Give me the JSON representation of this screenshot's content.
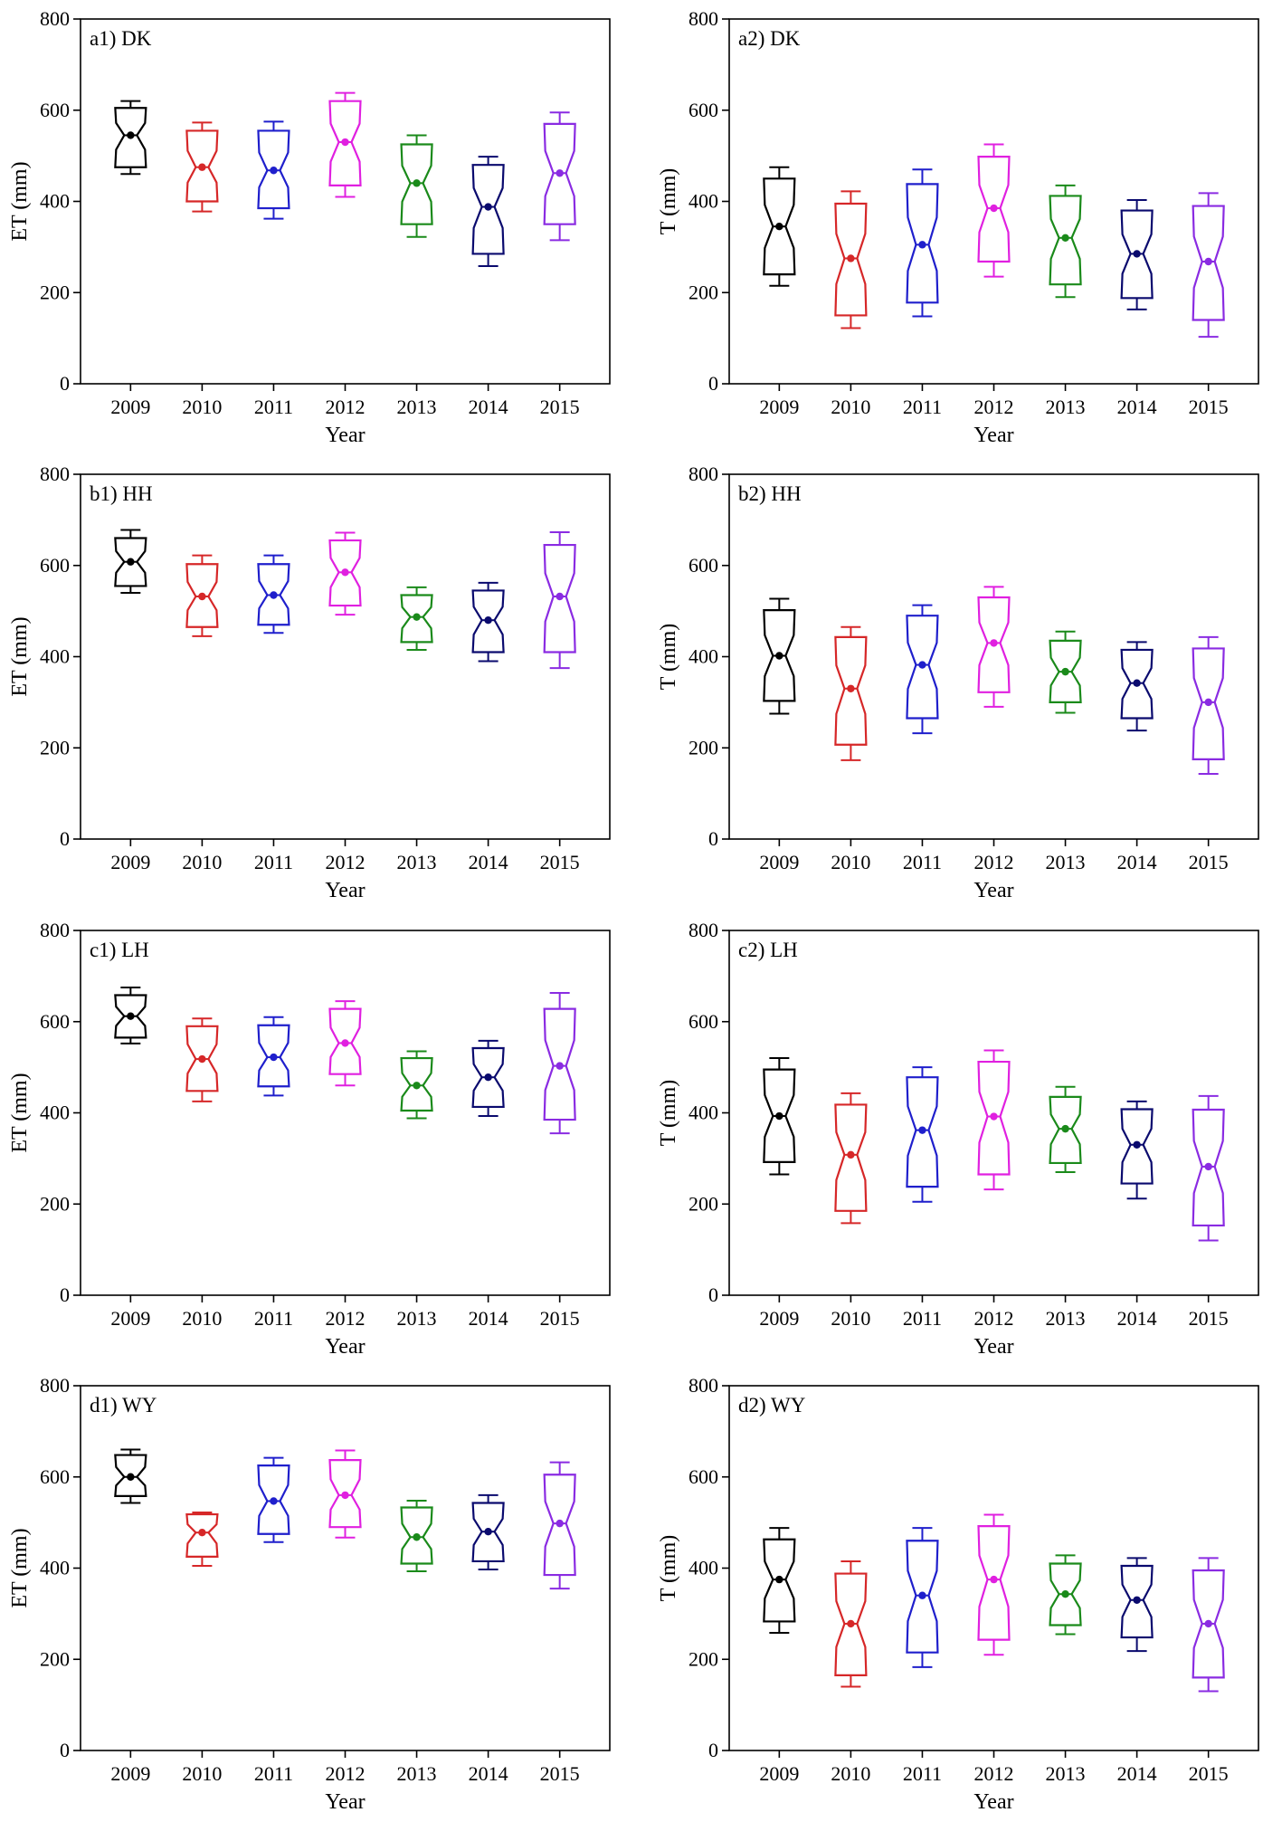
{
  "colors": {
    "2009": "#000000",
    "2010": "#d62728",
    "2011": "#1f1fcc",
    "2012": "#e020e0",
    "2013": "#1a8a1a",
    "2014": "#0a0a6e",
    "2015": "#8a2be2"
  },
  "chart_data": [
    {
      "type": "box",
      "panel": "a1) DK",
      "xlabel": "Year",
      "ylabel": "ET (mm)",
      "ylim": [
        0,
        800
      ],
      "yticks": [
        "0",
        "200",
        "400",
        "600",
        "800"
      ],
      "categories": [
        "2009",
        "2010",
        "2011",
        "2012",
        "2013",
        "2014",
        "2015"
      ],
      "boxes": [
        {
          "min": 460,
          "q1": 475,
          "median": 545,
          "q3": 605,
          "max": 620
        },
        {
          "min": 378,
          "q1": 400,
          "median": 475,
          "q3": 555,
          "max": 573
        },
        {
          "min": 362,
          "q1": 385,
          "median": 468,
          "q3": 555,
          "max": 575
        },
        {
          "min": 410,
          "q1": 435,
          "median": 530,
          "q3": 620,
          "max": 638
        },
        {
          "min": 322,
          "q1": 350,
          "median": 440,
          "q3": 525,
          "max": 545
        },
        {
          "min": 258,
          "q1": 285,
          "median": 388,
          "q3": 480,
          "max": 498
        },
        {
          "min": 315,
          "q1": 350,
          "median": 462,
          "q3": 570,
          "max": 595
        }
      ]
    },
    {
      "type": "box",
      "panel": "a2) DK",
      "xlabel": "Year",
      "ylabel": "T (mm)",
      "ylim": [
        0,
        800
      ],
      "yticks": [
        "0",
        "200",
        "400",
        "600",
        "800"
      ],
      "categories": [
        "2009",
        "2010",
        "2011",
        "2012",
        "2013",
        "2014",
        "2015"
      ],
      "boxes": [
        {
          "min": 215,
          "q1": 240,
          "median": 345,
          "q3": 450,
          "max": 475
        },
        {
          "min": 122,
          "q1": 150,
          "median": 275,
          "q3": 395,
          "max": 422
        },
        {
          "min": 148,
          "q1": 178,
          "median": 305,
          "q3": 438,
          "max": 470
        },
        {
          "min": 235,
          "q1": 268,
          "median": 385,
          "q3": 498,
          "max": 525
        },
        {
          "min": 190,
          "q1": 218,
          "median": 320,
          "q3": 412,
          "max": 435
        },
        {
          "min": 163,
          "q1": 188,
          "median": 285,
          "q3": 380,
          "max": 403
        },
        {
          "min": 103,
          "q1": 140,
          "median": 268,
          "q3": 390,
          "max": 418
        }
      ]
    },
    {
      "type": "box",
      "panel": "b1) HH",
      "xlabel": "Year",
      "ylabel": "ET (mm)",
      "ylim": [
        0,
        800
      ],
      "yticks": [
        "0",
        "200",
        "400",
        "600",
        "800"
      ],
      "categories": [
        "2009",
        "2010",
        "2011",
        "2012",
        "2013",
        "2014",
        "2015"
      ],
      "boxes": [
        {
          "min": 540,
          "q1": 555,
          "median": 608,
          "q3": 660,
          "max": 678
        },
        {
          "min": 445,
          "q1": 465,
          "median": 532,
          "q3": 603,
          "max": 622
        },
        {
          "min": 452,
          "q1": 470,
          "median": 535,
          "q3": 603,
          "max": 622
        },
        {
          "min": 492,
          "q1": 512,
          "median": 585,
          "q3": 655,
          "max": 672
        },
        {
          "min": 415,
          "q1": 432,
          "median": 487,
          "q3": 535,
          "max": 552
        },
        {
          "min": 390,
          "q1": 410,
          "median": 480,
          "q3": 545,
          "max": 562
        },
        {
          "min": 375,
          "q1": 410,
          "median": 532,
          "q3": 645,
          "max": 673
        }
      ]
    },
    {
      "type": "box",
      "panel": "b2) HH",
      "xlabel": "Year",
      "ylabel": "T (mm)",
      "ylim": [
        0,
        800
      ],
      "yticks": [
        "0",
        "200",
        "400",
        "600",
        "800"
      ],
      "categories": [
        "2009",
        "2010",
        "2011",
        "2012",
        "2013",
        "2014",
        "2015"
      ],
      "boxes": [
        {
          "min": 275,
          "q1": 303,
          "median": 402,
          "q3": 502,
          "max": 527
        },
        {
          "min": 173,
          "q1": 207,
          "median": 330,
          "q3": 443,
          "max": 465
        },
        {
          "min": 232,
          "q1": 265,
          "median": 382,
          "q3": 490,
          "max": 513
        },
        {
          "min": 290,
          "q1": 322,
          "median": 430,
          "q3": 530,
          "max": 553
        },
        {
          "min": 277,
          "q1": 300,
          "median": 367,
          "q3": 435,
          "max": 455
        },
        {
          "min": 238,
          "q1": 265,
          "median": 342,
          "q3": 415,
          "max": 432
        },
        {
          "min": 143,
          "q1": 175,
          "median": 300,
          "q3": 418,
          "max": 443
        }
      ]
    },
    {
      "type": "box",
      "panel": "c1) LH",
      "xlabel": "Year",
      "ylabel": "ET (mm)",
      "ylim": [
        0,
        800
      ],
      "yticks": [
        "0",
        "200",
        "400",
        "600",
        "800"
      ],
      "categories": [
        "2009",
        "2010",
        "2011",
        "2012",
        "2013",
        "2014",
        "2015"
      ],
      "boxes": [
        {
          "min": 552,
          "q1": 565,
          "median": 612,
          "q3": 658,
          "max": 675
        },
        {
          "min": 425,
          "q1": 448,
          "median": 518,
          "q3": 590,
          "max": 607
        },
        {
          "min": 438,
          "q1": 458,
          "median": 522,
          "q3": 592,
          "max": 610
        },
        {
          "min": 460,
          "q1": 485,
          "median": 553,
          "q3": 628,
          "max": 645
        },
        {
          "min": 388,
          "q1": 405,
          "median": 460,
          "q3": 520,
          "max": 535
        },
        {
          "min": 393,
          "q1": 413,
          "median": 478,
          "q3": 542,
          "max": 558
        },
        {
          "min": 355,
          "q1": 385,
          "median": 503,
          "q3": 628,
          "max": 663
        }
      ]
    },
    {
      "type": "box",
      "panel": "c2) LH",
      "xlabel": "Year",
      "ylabel": "T (mm)",
      "ylim": [
        0,
        800
      ],
      "yticks": [
        "0",
        "200",
        "400",
        "600",
        "800"
      ],
      "categories": [
        "2009",
        "2010",
        "2011",
        "2012",
        "2013",
        "2014",
        "2015"
      ],
      "boxes": [
        {
          "min": 265,
          "q1": 292,
          "median": 393,
          "q3": 495,
          "max": 520
        },
        {
          "min": 158,
          "q1": 185,
          "median": 308,
          "q3": 418,
          "max": 443
        },
        {
          "min": 205,
          "q1": 238,
          "median": 362,
          "q3": 478,
          "max": 500
        },
        {
          "min": 232,
          "q1": 265,
          "median": 392,
          "q3": 512,
          "max": 537
        },
        {
          "min": 270,
          "q1": 290,
          "median": 365,
          "q3": 435,
          "max": 457
        },
        {
          "min": 212,
          "q1": 245,
          "median": 330,
          "q3": 408,
          "max": 425
        },
        {
          "min": 120,
          "q1": 153,
          "median": 282,
          "q3": 407,
          "max": 437
        }
      ]
    },
    {
      "type": "box",
      "panel": "d1) WY",
      "xlabel": "Year",
      "ylabel": "ET (mm)",
      "ylim": [
        0,
        800
      ],
      "yticks": [
        "0",
        "200",
        "400",
        "600",
        "800"
      ],
      "categories": [
        "2009",
        "2010",
        "2011",
        "2012",
        "2013",
        "2014",
        "2015"
      ],
      "boxes": [
        {
          "min": 543,
          "q1": 558,
          "median": 600,
          "q3": 648,
          "max": 660
        },
        {
          "min": 405,
          "q1": 425,
          "median": 478,
          "q3": 518,
          "max": 522
        },
        {
          "min": 457,
          "q1": 475,
          "median": 547,
          "q3": 625,
          "max": 642
        },
        {
          "min": 467,
          "q1": 490,
          "median": 560,
          "q3": 637,
          "max": 658
        },
        {
          "min": 393,
          "q1": 410,
          "median": 468,
          "q3": 533,
          "max": 548
        },
        {
          "min": 397,
          "q1": 415,
          "median": 480,
          "q3": 543,
          "max": 560
        },
        {
          "min": 355,
          "q1": 385,
          "median": 498,
          "q3": 605,
          "max": 632
        }
      ]
    },
    {
      "type": "box",
      "panel": "d2) WY",
      "xlabel": "Year",
      "ylabel": "T (mm)",
      "ylim": [
        0,
        800
      ],
      "yticks": [
        "0",
        "200",
        "400",
        "600",
        "800"
      ],
      "categories": [
        "2009",
        "2010",
        "2011",
        "2012",
        "2013",
        "2014",
        "2015"
      ],
      "boxes": [
        {
          "min": 258,
          "q1": 283,
          "median": 375,
          "q3": 463,
          "max": 488
        },
        {
          "min": 140,
          "q1": 165,
          "median": 278,
          "q3": 388,
          "max": 415
        },
        {
          "min": 183,
          "q1": 215,
          "median": 340,
          "q3": 460,
          "max": 488
        },
        {
          "min": 210,
          "q1": 243,
          "median": 375,
          "q3": 492,
          "max": 517
        },
        {
          "min": 255,
          "q1": 275,
          "median": 343,
          "q3": 410,
          "max": 428
        },
        {
          "min": 218,
          "q1": 248,
          "median": 330,
          "q3": 405,
          "max": 422
        },
        {
          "min": 130,
          "q1": 160,
          "median": 278,
          "q3": 395,
          "max": 422
        }
      ]
    }
  ]
}
